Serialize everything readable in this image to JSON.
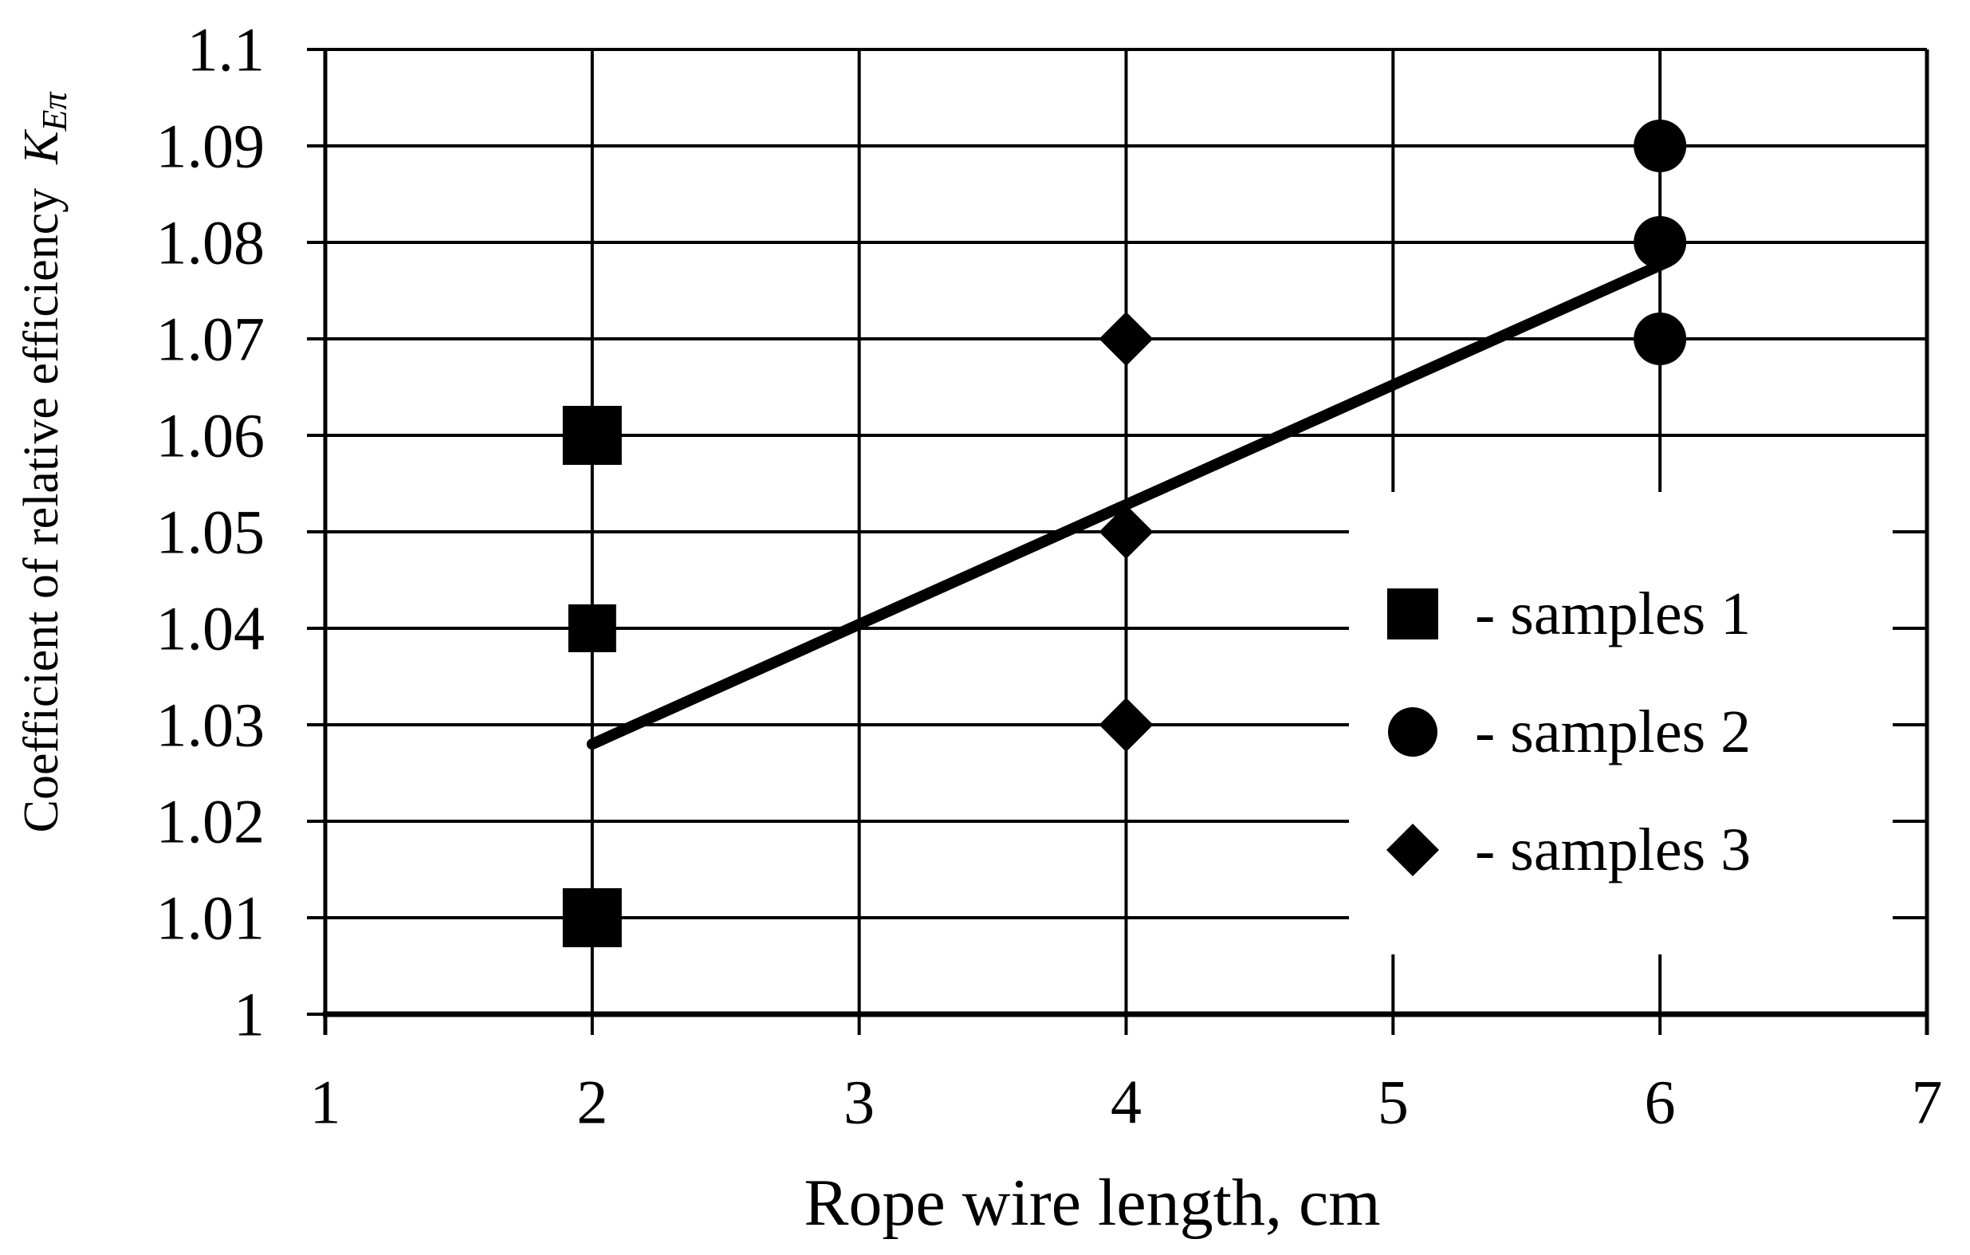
{
  "chart_data": {
    "type": "scatter",
    "title": "",
    "xlabel": "Rope wire length, cm",
    "ylabel": "Coefficient of relative efficiency",
    "ylabel_symbol": "K",
    "ylabel_symbol_sub": "Eπ",
    "xlim": [
      1,
      7
    ],
    "ylim": [
      1.0,
      1.1
    ],
    "x_ticks": [
      1,
      2,
      3,
      4,
      5,
      6,
      7
    ],
    "y_ticks": [
      1.1,
      1.09,
      1.08,
      1.07,
      1.06,
      1.05,
      1.04,
      1.03,
      1.02,
      1.01,
      1
    ],
    "y_tick_labels": [
      "1.1",
      "1.09",
      "1.08",
      "1.07",
      "1.06",
      "1.05",
      "1.04",
      "1.03",
      "1.02",
      "1.01",
      "1"
    ],
    "grid": true,
    "colors": {
      "foreground": "#000000",
      "background": "#ffffff"
    },
    "series": [
      {
        "name": "samples 1",
        "marker": "square",
        "points": [
          {
            "x": 2,
            "y": 1.06,
            "size": 74
          },
          {
            "x": 2,
            "y": 1.04,
            "size": 60
          },
          {
            "x": 2,
            "y": 1.01,
            "size": 74
          }
        ]
      },
      {
        "name": "samples 2",
        "marker": "circle",
        "points": [
          {
            "x": 6,
            "y": 1.09,
            "size": 66
          },
          {
            "x": 6,
            "y": 1.08,
            "size": 66
          },
          {
            "x": 6,
            "y": 1.07,
            "size": 66
          }
        ]
      },
      {
        "name": "samples 3",
        "marker": "diamond",
        "points": [
          {
            "x": 4,
            "y": 1.07,
            "size": 68
          },
          {
            "x": 4,
            "y": 1.05,
            "size": 68
          },
          {
            "x": 4,
            "y": 1.03,
            "size": 68
          }
        ]
      }
    ],
    "trend_line": {
      "x1": 2.0,
      "y1": 1.028,
      "x2": 6.03,
      "y2": 1.078
    },
    "legend": {
      "position": "inside-right",
      "items": [
        {
          "marker": "square",
          "label": "- samples 1"
        },
        {
          "marker": "circle",
          "label": "- samples 2"
        },
        {
          "marker": "diamond",
          "label": "- samples 3"
        }
      ]
    }
  }
}
